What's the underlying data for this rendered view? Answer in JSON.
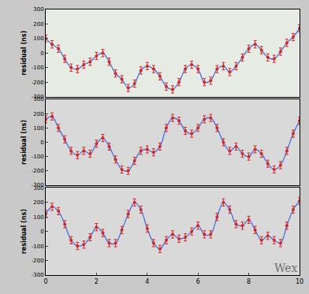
{
  "chart_data": [
    {
      "type": "scatter",
      "ylabel": "residual (ns)",
      "tick_labels": "y",
      "xlim": [
        0,
        10
      ],
      "ylim": [
        -300,
        300
      ],
      "yticks": [
        -300,
        -200,
        -100,
        0,
        100,
        200,
        300
      ],
      "x": [
        0,
        0.25,
        0.5,
        0.75,
        1,
        1.25,
        1.5,
        1.75,
        2,
        2.25,
        2.5,
        2.75,
        3,
        3.25,
        3.5,
        3.75,
        4,
        4.25,
        4.5,
        4.75,
        5,
        5.25,
        5.5,
        5.75,
        6,
        6.25,
        6.5,
        6.75,
        7,
        7.25,
        7.5,
        7.75,
        8,
        8.25,
        8.5,
        8.75,
        9,
        9.25,
        9.5,
        9.75,
        10
      ],
      "series": [
        {
          "type": "scatter",
          "color": "#d62728",
          "marker": "circle",
          "error": 25,
          "values": [
            100,
            60,
            30,
            -40,
            -100,
            -110,
            -80,
            -60,
            -20,
            0,
            -60,
            -140,
            -180,
            -240,
            -210,
            -120,
            -90,
            -110,
            -160,
            -230,
            -250,
            -200,
            -110,
            -80,
            -110,
            -200,
            -190,
            -110,
            -90,
            -130,
            -90,
            -30,
            30,
            60,
            20,
            -30,
            -40,
            10,
            70,
            110,
            170
          ]
        },
        {
          "type": "line",
          "color": "#4a6fd8",
          "line_style": "solid",
          "values": [
            100,
            60,
            30,
            -40,
            -100,
            -110,
            -80,
            -60,
            -20,
            0,
            -60,
            -140,
            -180,
            -240,
            -210,
            -120,
            -90,
            -110,
            -160,
            -230,
            -250,
            -200,
            -110,
            -80,
            -110,
            -200,
            -190,
            -110,
            -90,
            -130,
            -90,
            -30,
            30,
            60,
            20,
            -30,
            -40,
            10,
            70,
            110,
            170
          ]
        }
      ]
    },
    {
      "type": "scatter",
      "ylabel": "residual (ns)",
      "tick_labels": "y",
      "xlim": [
        0,
        10
      ],
      "ylim": [
        -300,
        300
      ],
      "yticks": [
        -300,
        -200,
        -100,
        0,
        100,
        200,
        300
      ],
      "x": [
        0,
        0.25,
        0.5,
        0.75,
        1,
        1.25,
        1.5,
        1.75,
        2,
        2.25,
        2.5,
        2.75,
        3,
        3.25,
        3.5,
        3.75,
        4,
        4.25,
        4.5,
        4.75,
        5,
        5.25,
        5.5,
        5.75,
        6,
        6.25,
        6.5,
        6.75,
        7,
        7.25,
        7.5,
        7.75,
        8,
        8.25,
        8.5,
        8.75,
        9,
        9.25,
        9.5,
        9.75,
        10
      ],
      "series": [
        {
          "type": "scatter",
          "color": "#d62728",
          "marker": "circle",
          "error": 25,
          "values": [
            160,
            180,
            100,
            20,
            -60,
            -90,
            -60,
            -80,
            -10,
            30,
            -30,
            -120,
            -190,
            -200,
            -130,
            -60,
            -50,
            -70,
            -30,
            100,
            170,
            150,
            80,
            60,
            100,
            160,
            170,
            100,
            0,
            -60,
            -30,
            -80,
            -100,
            -50,
            -80,
            -150,
            -190,
            -160,
            -60,
            60,
            150
          ]
        },
        {
          "type": "line",
          "color": "#4a6fd8",
          "line_style": "solid",
          "values": [
            160,
            180,
            100,
            20,
            -60,
            -90,
            -60,
            -80,
            -10,
            30,
            -30,
            -120,
            -190,
            -200,
            -130,
            -60,
            -50,
            -70,
            -30,
            100,
            170,
            150,
            80,
            60,
            100,
            160,
            170,
            100,
            0,
            -60,
            -30,
            -80,
            -100,
            -50,
            -80,
            -150,
            -190,
            -160,
            -60,
            60,
            150
          ]
        }
      ]
    },
    {
      "type": "scatter",
      "ylabel": "residual (ns)",
      "xlim": [
        0,
        10
      ],
      "ylim": [
        -300,
        300
      ],
      "yticks": [
        -300,
        -200,
        -100,
        0,
        100,
        200,
        300
      ],
      "xticks": [
        0,
        2,
        4,
        6,
        8,
        10
      ],
      "annotations": [
        {
          "text": "Wex",
          "x": 10,
          "y": -250
        }
      ],
      "x": [
        0,
        0.25,
        0.5,
        0.75,
        1,
        1.25,
        1.5,
        1.75,
        2,
        2.25,
        2.5,
        2.75,
        3,
        3.25,
        3.5,
        3.75,
        4,
        4.25,
        4.5,
        4.75,
        5,
        5.25,
        5.5,
        5.75,
        6,
        6.25,
        6.5,
        6.75,
        7,
        7.25,
        7.5,
        7.75,
        8,
        8.25,
        8.5,
        8.75,
        9,
        9.25,
        9.5,
        9.75,
        10
      ],
      "series": [
        {
          "type": "scatter",
          "color": "#d62728",
          "marker": "circle",
          "error": 25,
          "values": [
            120,
            170,
            140,
            50,
            -60,
            -100,
            -90,
            -40,
            30,
            -10,
            -80,
            -80,
            10,
            120,
            200,
            150,
            20,
            -80,
            -120,
            -60,
            -20,
            -50,
            -40,
            0,
            40,
            -20,
            -20,
            100,
            200,
            150,
            50,
            40,
            80,
            10,
            -60,
            -30,
            -60,
            -80,
            40,
            150,
            210
          ]
        },
        {
          "type": "line",
          "color": "#4a6fd8",
          "line_style": "solid",
          "values": [
            120,
            170,
            140,
            50,
            -60,
            -100,
            -90,
            -40,
            30,
            -10,
            -80,
            -80,
            10,
            120,
            200,
            150,
            20,
            -80,
            -120,
            -60,
            -20,
            -50,
            -40,
            0,
            40,
            -20,
            -20,
            100,
            200,
            150,
            50,
            40,
            80,
            10,
            -60,
            -30,
            -60,
            -80,
            40,
            150,
            210
          ]
        }
      ]
    }
  ]
}
